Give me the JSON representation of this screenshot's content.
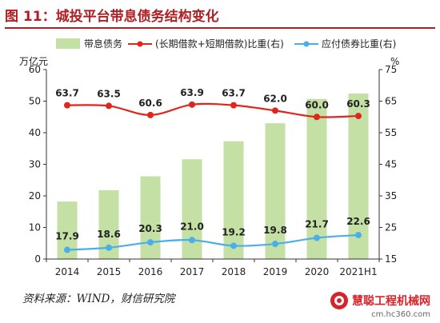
{
  "title": "图 11：城投平台带息债务结构变化",
  "source": "资料来源：WIND，财信研究院",
  "watermark": {
    "name": "慧聪工程机械网",
    "url": "cm.hc360.com"
  },
  "colors": {
    "bar": "#c5e0a5",
    "red": "#e0261c",
    "blue": "#4aaee8",
    "title": "#b11f24"
  },
  "chart_data": {
    "type": "bar",
    "categories": [
      "2014",
      "2015",
      "2016",
      "2017",
      "2018",
      "2019",
      "2020",
      "2021H1"
    ],
    "series": [
      {
        "name": "带息债务",
        "type": "bar",
        "axis": "left",
        "values": [
          18.2,
          21.8,
          26.2,
          31.6,
          37.3,
          43.0,
          50.7,
          52.4
        ]
      },
      {
        "name": "(长期借款+短期借款)比重(右)",
        "type": "line",
        "axis": "right",
        "values": [
          63.7,
          63.5,
          60.6,
          63.9,
          63.7,
          62.0,
          60.0,
          60.3
        ],
        "labels": [
          "63.7",
          "63.5",
          "60.6",
          "63.9",
          "63.7",
          "62.0",
          "60.0",
          "60.3"
        ]
      },
      {
        "name": "应付债券比重(右)",
        "type": "line",
        "axis": "right",
        "values": [
          17.9,
          18.6,
          20.3,
          21.0,
          19.2,
          19.8,
          21.7,
          22.6
        ],
        "labels": [
          "17.9",
          "18.6",
          "20.3",
          "21.0",
          "19.2",
          "19.8",
          "21.7",
          "22.6"
        ]
      }
    ],
    "y_left": {
      "label": "万亿元",
      "range": [
        0,
        60
      ],
      "ticks": [
        0,
        10,
        20,
        30,
        40,
        50,
        60
      ]
    },
    "y_right": {
      "label": "%",
      "range": [
        15,
        75
      ],
      "ticks": [
        15,
        25,
        35,
        45,
        55,
        65,
        75
      ]
    },
    "legend_position": "top",
    "grid": false
  }
}
